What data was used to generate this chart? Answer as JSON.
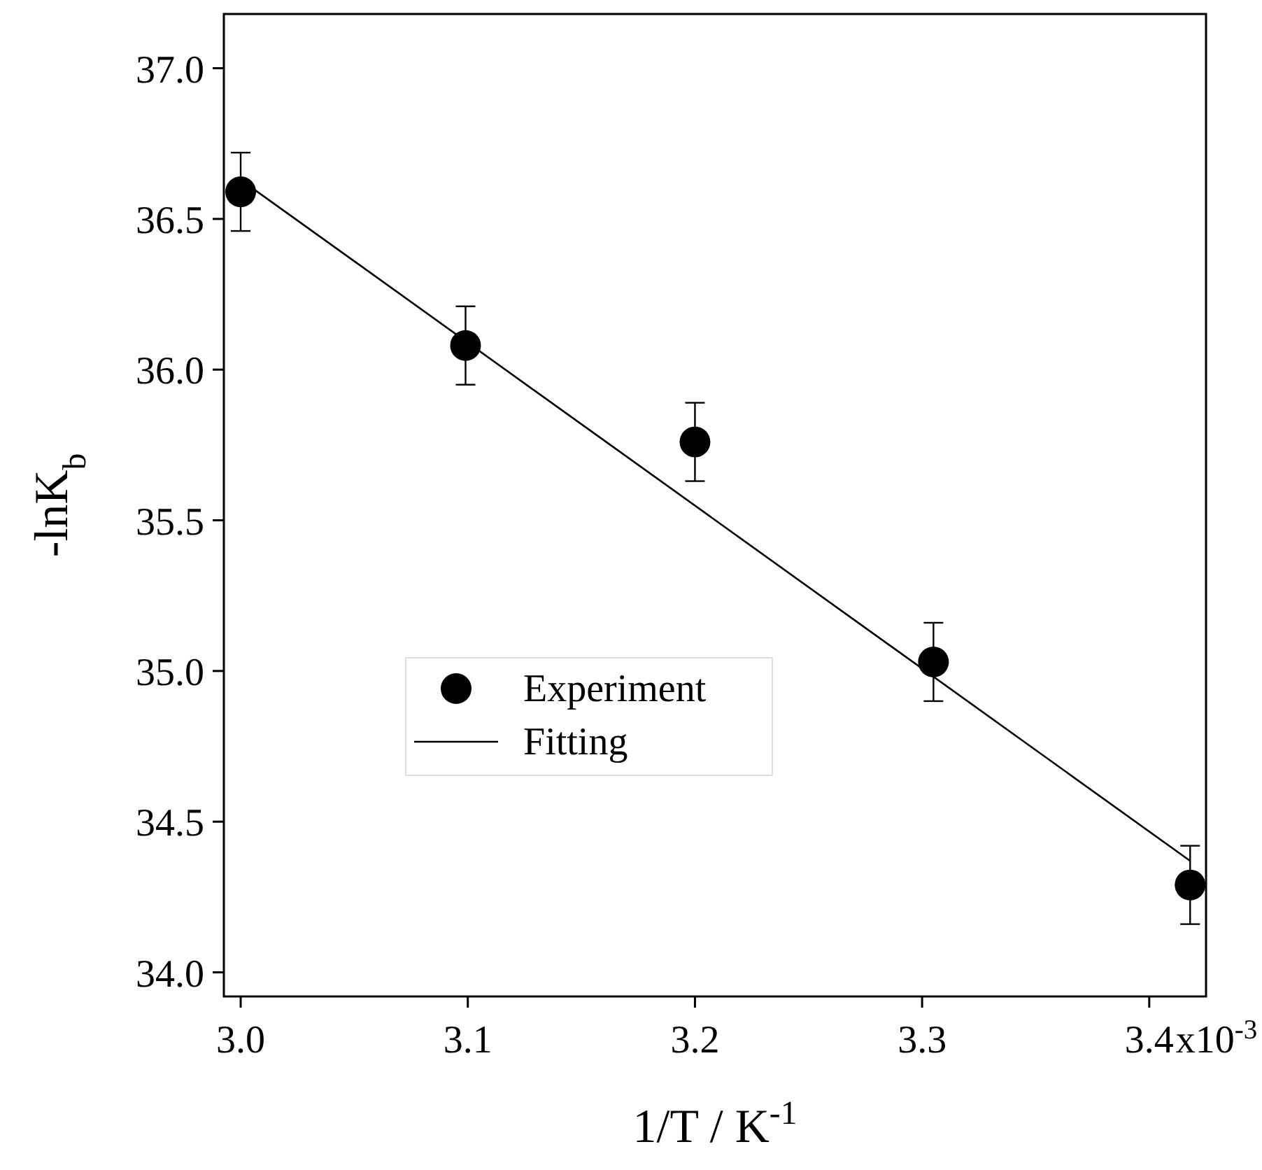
{
  "chart_data": {
    "type": "scatter",
    "xlabel": "1/T / K$^{-1}$",
    "ylabel": "-lnK$_{b}$",
    "xlim": [
      2.9926,
      3.425
    ],
    "xticks": [
      {
        "value": 3.0,
        "label": "3.0"
      },
      3.1,
      3.2,
      3.3,
      3.4
    ],
    "annotations": [
      "x10$^{-3}$"
    ],
    "ylim": [
      33.92,
      37.18
    ],
    "yticks": [
      {
        "value": 34.0,
        "label": "34.0"
      },
      34.5,
      {
        "value": 35.0,
        "label": "35.0"
      },
      35.5,
      {
        "value": 36.0,
        "label": "36.0"
      },
      36.5,
      {
        "value": 37.0,
        "label": "37.0"
      }
    ],
    "legend": "center left",
    "grid": false,
    "series": [
      {
        "name": "Experiment",
        "type": "scatter",
        "color": "#000000",
        "marker": "circle",
        "x": [
          3.0,
          3.099,
          3.2,
          3.305,
          3.418
        ],
        "values": [
          36.59,
          36.08,
          35.76,
          35.03,
          34.29
        ],
        "errors": [
          0.13,
          0.13,
          0.13,
          0.13,
          0.13
        ]
      },
      {
        "name": "Fitting",
        "type": "line",
        "color": "#000000",
        "marker": "none",
        "line_style": "solid",
        "x": [
          3.0,
          3.418
        ],
        "values": [
          36.63,
          34.37
        ]
      }
    ]
  }
}
